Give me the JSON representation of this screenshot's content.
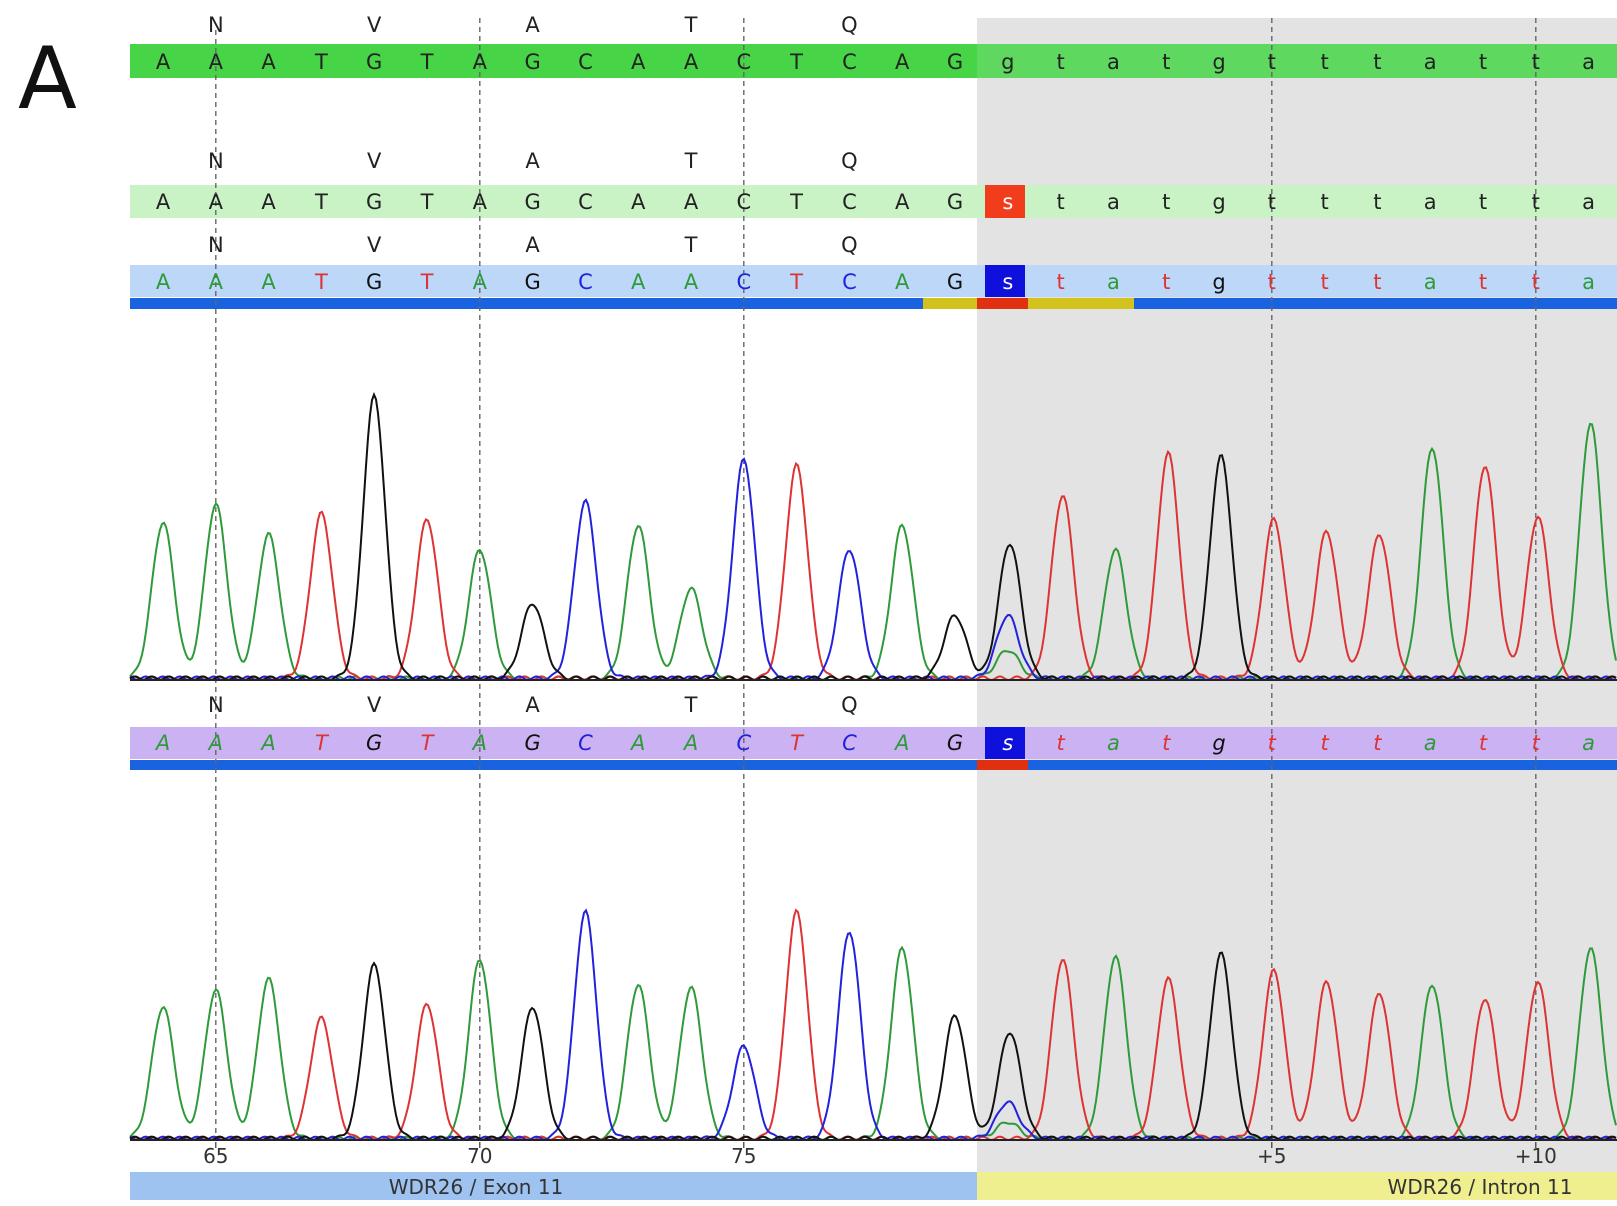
{
  "panel_label": "A",
  "colors": {
    "A": "#2e9a3a",
    "C": "#2222dd",
    "G": "#111111",
    "T": "#dd3333"
  },
  "amino_acids": [
    {
      "label": "N",
      "base_index": 1
    },
    {
      "label": "V",
      "base_index": 4
    },
    {
      "label": "A",
      "base_index": 7
    },
    {
      "label": "T",
      "base_index": 10
    },
    {
      "label": "Q",
      "base_index": 13
    }
  ],
  "rows": {
    "reference": [
      "A",
      "A",
      "A",
      "T",
      "G",
      "T",
      "A",
      "G",
      "C",
      "A",
      "A",
      "C",
      "T",
      "C",
      "A",
      "G",
      "g",
      "t",
      "a",
      "t",
      "g",
      "t",
      "t",
      "t",
      "a",
      "t",
      "t",
      "a"
    ],
    "consensus": [
      "A",
      "A",
      "A",
      "T",
      "G",
      "T",
      "A",
      "G",
      "C",
      "A",
      "A",
      "C",
      "T",
      "C",
      "A",
      "G",
      "s",
      "t",
      "a",
      "t",
      "g",
      "t",
      "t",
      "t",
      "a",
      "t",
      "t",
      "a"
    ],
    "sample1": [
      "A",
      "A",
      "A",
      "T",
      "G",
      "T",
      "A",
      "G",
      "C",
      "A",
      "A",
      "C",
      "T",
      "C",
      "A",
      "G",
      "s",
      "t",
      "a",
      "t",
      "g",
      "t",
      "t",
      "t",
      "a",
      "t",
      "t",
      "a"
    ],
    "sample2": [
      "A",
      "A",
      "A",
      "T",
      "G",
      "T",
      "A",
      "G",
      "C",
      "A",
      "A",
      "C",
      "T",
      "C",
      "A",
      "G",
      "s",
      "t",
      "a",
      "t",
      "g",
      "t",
      "t",
      "t",
      "a",
      "t",
      "t",
      "a"
    ]
  },
  "variant_index": 16,
  "ruler": [
    {
      "label": "65",
      "base_index": 1
    },
    {
      "label": "70",
      "base_index": 6
    },
    {
      "label": "75",
      "base_index": 11
    },
    {
      "label": "+5",
      "base_index": 21
    },
    {
      "label": "+10",
      "base_index": 26
    }
  ],
  "regions": {
    "exon": "WDR26 / Exon 11",
    "intron": "WDR26 / Intron 11"
  },
  "chromatogram1": {
    "peaks": [
      {
        "base": "A",
        "h": 0.52
      },
      {
        "base": "A",
        "h": 0.58
      },
      {
        "base": "A",
        "h": 0.48
      },
      {
        "base": "T",
        "h": 0.55
      },
      {
        "base": "G",
        "h": 0.94
      },
      {
        "base": "T",
        "h": 0.53
      },
      {
        "base": "A",
        "h": 0.43
      },
      {
        "base": "G",
        "h": 0.25
      },
      {
        "base": "C",
        "h": 0.59
      },
      {
        "base": "A",
        "h": 0.51
      },
      {
        "base": "A",
        "h": 0.3
      },
      {
        "base": "C",
        "h": 0.73
      },
      {
        "base": "T",
        "h": 0.71
      },
      {
        "base": "C",
        "h": 0.43
      },
      {
        "base": "A",
        "h": 0.51
      },
      {
        "base": "G",
        "h": 0.21
      },
      {
        "base": "S",
        "h": 0.45
      },
      {
        "base": "T",
        "h": 0.61
      },
      {
        "base": "A",
        "h": 0.43
      },
      {
        "base": "T",
        "h": 0.75
      },
      {
        "base": "G",
        "h": 0.74
      },
      {
        "base": "T",
        "h": 0.53
      },
      {
        "base": "T",
        "h": 0.49
      },
      {
        "base": "T",
        "h": 0.48
      },
      {
        "base": "A",
        "h": 0.77
      },
      {
        "base": "T",
        "h": 0.71
      },
      {
        "base": "T",
        "h": 0.54
      },
      {
        "base": "A",
        "h": 0.85
      }
    ],
    "het_minor": {
      "base": "C",
      "h": 0.21
    }
  },
  "chromatogram2": {
    "peaks": [
      {
        "base": "A",
        "h": 0.47
      },
      {
        "base": "A",
        "h": 0.53
      },
      {
        "base": "A",
        "h": 0.57
      },
      {
        "base": "T",
        "h": 0.43
      },
      {
        "base": "G",
        "h": 0.62
      },
      {
        "base": "T",
        "h": 0.48
      },
      {
        "base": "A",
        "h": 0.64
      },
      {
        "base": "G",
        "h": 0.47
      },
      {
        "base": "C",
        "h": 0.81
      },
      {
        "base": "A",
        "h": 0.55
      },
      {
        "base": "A",
        "h": 0.54
      },
      {
        "base": "C",
        "h": 0.33
      },
      {
        "base": "T",
        "h": 0.81
      },
      {
        "base": "C",
        "h": 0.74
      },
      {
        "base": "A",
        "h": 0.68
      },
      {
        "base": "G",
        "h": 0.44
      },
      {
        "base": "S",
        "h": 0.38
      },
      {
        "base": "T",
        "h": 0.64
      },
      {
        "base": "A",
        "h": 0.65
      },
      {
        "base": "T",
        "h": 0.57
      },
      {
        "base": "G",
        "h": 0.66
      },
      {
        "base": "T",
        "h": 0.6
      },
      {
        "base": "T",
        "h": 0.56
      },
      {
        "base": "T",
        "h": 0.52
      },
      {
        "base": "A",
        "h": 0.55
      },
      {
        "base": "T",
        "h": 0.5
      },
      {
        "base": "T",
        "h": 0.56
      },
      {
        "base": "A",
        "h": 0.68
      }
    ],
    "het_minor": {
      "base": "C",
      "h": 0.13
    }
  }
}
